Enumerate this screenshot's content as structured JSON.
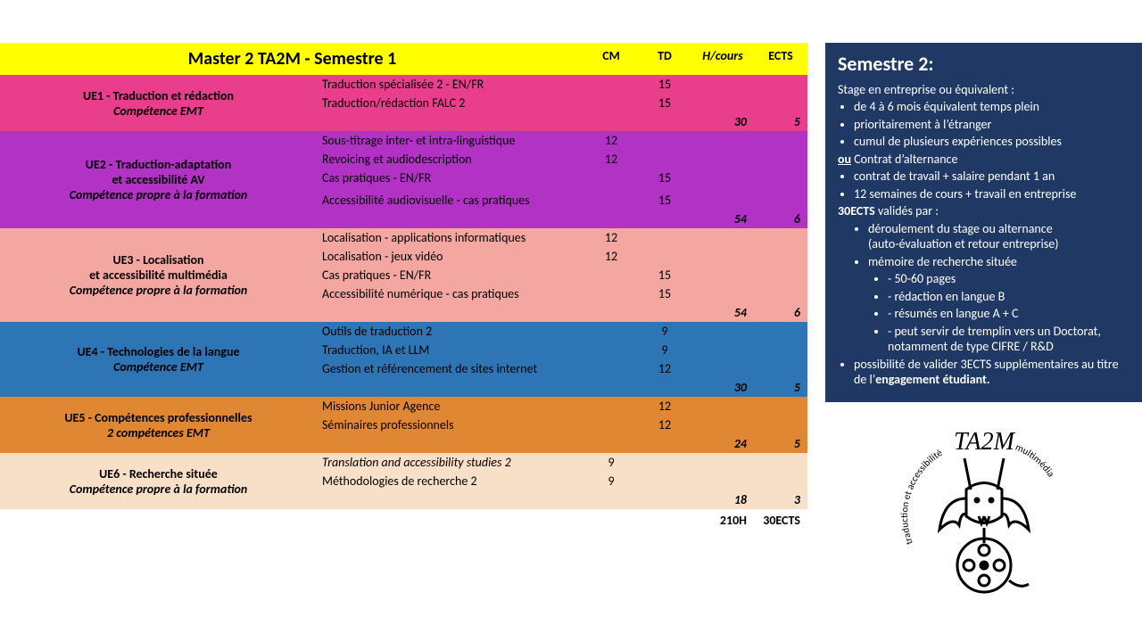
{
  "header": {
    "title": "Master 2 TA2M - Semestre 1",
    "cm": "CM",
    "td": "TD",
    "hcours": "H/cours",
    "ects": "ECTS"
  },
  "ues": [
    {
      "bg": "#e83e8c",
      "text": "#000000",
      "title": "UE1 - Traduction et rédaction",
      "subtitle": "Compétence EMT",
      "courses": [
        {
          "name": "Traduction spécialisée 2 - EN/FR",
          "cm": "",
          "td": "15"
        },
        {
          "name": "Traduction/rédaction FALC 2",
          "cm": "",
          "td": "15"
        }
      ],
      "blank_rows": 1,
      "hcours": "30",
      "ects": "5"
    },
    {
      "bg": "#b332c6",
      "text": "#000000",
      "title": "UE2 - Traduction-adaptation",
      "title2": "et accessibilité AV",
      "subtitle": "Compétence propre à la formation",
      "courses": [
        {
          "name": "Sous-titrage inter- et intra-linguistique",
          "cm": "12",
          "td": ""
        },
        {
          "name": "Revoicing et audiodescription",
          "cm": "12",
          "td": ""
        },
        {
          "name": "Cas pratiques - EN/FR",
          "cm": "",
          "td": "15"
        },
        {
          "name": "",
          "cm": "",
          "td": ""
        },
        {
          "name": "Accessibilité audiovisuelle - cas pratiques",
          "cm": "",
          "td": "15"
        }
      ],
      "hcours": "54",
      "ects": "6"
    },
    {
      "bg": "#f4a7a0",
      "text": "#000000",
      "title": "UE3 - Localisation",
      "title2": "et accessibilité multimédia",
      "subtitle": "Compétence propre à la formation",
      "courses": [
        {
          "name": "Localisation - applications informatiques",
          "cm": "12",
          "td": ""
        },
        {
          "name": "Localisation - jeux vidéo",
          "cm": "12",
          "td": ""
        },
        {
          "name": "Cas pratiques - EN/FR",
          "cm": "",
          "td": "15"
        },
        {
          "name": "Accessibilité numérique - cas pratiques",
          "cm": "",
          "td": "15"
        }
      ],
      "hcours": "54",
      "ects": "6"
    },
    {
      "bg": "#2e75b6",
      "text": "#000000",
      "title": "UE4 - Technologies de la langue",
      "subtitle": "Compétence EMT",
      "courses": [
        {
          "name": "Outils de traduction 2",
          "cm": "",
          "td": "9"
        },
        {
          "name": "Traduction, IA et LLM",
          "cm": "",
          "td": "9"
        },
        {
          "name": "Gestion et référencement de sites internet",
          "cm": "",
          "td": "12"
        }
      ],
      "hcours": "30",
      "ects": "5"
    },
    {
      "bg": "#e08734",
      "text": "#000000",
      "title": "UE5 - Compétences professionnelles",
      "subtitle": "2 compétences EMT",
      "courses": [
        {
          "name": "Missions Junior Agence",
          "cm": "",
          "td": "12"
        },
        {
          "name": "Séminaires professionnels",
          "cm": "",
          "td": "12"
        }
      ],
      "hcours": "24",
      "ects": "5"
    },
    {
      "bg": "#f8e0c8",
      "text": "#000000",
      "title": "UE6 - Recherche située",
      "subtitle": "Compétence propre à la formation",
      "courses": [
        {
          "name": "Translation and accessibility studies 2",
          "italic": true,
          "cm": "9",
          "td": ""
        },
        {
          "name": "Méthodologies de recherche 2",
          "cm": "9",
          "td": ""
        }
      ],
      "hcours": "18",
      "ects": "3"
    }
  ],
  "grand_total": {
    "hours": "210H",
    "ects": "30ECTS"
  },
  "sem2": {
    "title": "Semestre 2:",
    "intro": "Stage en entreprise ou équivalent :",
    "intro_bullets": [
      "de 4 à 6 mois équivalent temps plein",
      "prioritairement à l’étranger",
      "cumul de plusieurs expériences possibles"
    ],
    "or_label_underlined": "ou",
    "or_label_rest": " Contrat d’alternance",
    "alt_bullets": [
      "contrat de travail + salaire pendant 1 an",
      "12 semaines de cours + travail en entreprise"
    ],
    "ects_line_bold": "30ECTS",
    "ects_line_rest": " validés par :",
    "validated_by": [
      {
        "text": "déroulement du stage ou alternance",
        "parenthetical": "(auto-évaluation et retour entreprise)"
      },
      {
        "text": "mémoire de recherche située",
        "sub": [
          "- 50-60 pages",
          "- rédaction en langue B",
          "- résumés en langue A + C",
          "- peut servir de tremplin vers un Doctorat, notamment de type CIFRE / R&D"
        ]
      }
    ],
    "extra_bullet_pre": "possibilité de valider 3ECTS supplémentaires au titre de l’",
    "extra_bullet_bold": "engagement étudiant."
  },
  "logo": {
    "name": "TA2M",
    "tagline_left": "traduction et accessibilité",
    "tagline_right": "multimédia"
  }
}
